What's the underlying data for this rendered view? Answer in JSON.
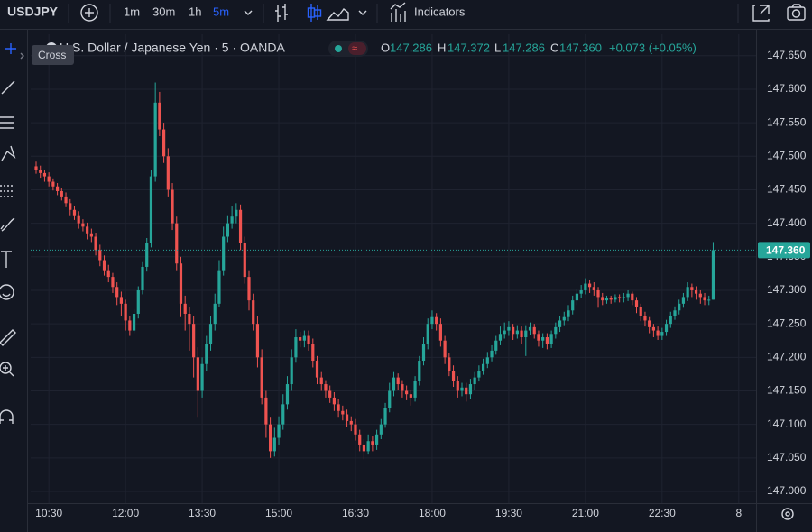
{
  "toolbar": {
    "symbol": "USDJPY",
    "intervals": [
      "1m",
      "30m",
      "1h",
      "5m"
    ],
    "indicators": "Indicators",
    "tooltip": "Cross"
  },
  "chart_data": {
    "type": "candlestick",
    "title": "U.S. Dollar / Japanese Yen · 5 · OANDA",
    "ohlc_legend": {
      "open_label": "O",
      "open": "147.286",
      "high_label": "H",
      "high": "147.372",
      "low_label": "L",
      "low": "147.286",
      "close_label": "C",
      "close": "147.360",
      "change": "+0.073 (+0.05%)"
    },
    "up_color": "#26a69a",
    "down_color": "#ef5350",
    "grid": true,
    "open": [
      147.485,
      147.48,
      147.475,
      147.47,
      147.462,
      147.455,
      147.448,
      147.44,
      147.43,
      147.42,
      147.412,
      147.4,
      147.395,
      147.385,
      147.38,
      147.36,
      147.345,
      147.33,
      147.32,
      147.305,
      147.29,
      147.28,
      147.255,
      147.24,
      147.265,
      147.3,
      147.335,
      147.37,
      147.47,
      147.58,
      147.54,
      147.5,
      147.45,
      147.4,
      147.34,
      147.28,
      147.265,
      147.25,
      147.2,
      147.15,
      147.19,
      147.22,
      147.25,
      147.28,
      147.33,
      147.38,
      147.4,
      147.41,
      147.42,
      147.37,
      147.32,
      147.285,
      147.25,
      147.2,
      147.14,
      147.1,
      147.06,
      147.08,
      147.1,
      147.13,
      147.16,
      147.2,
      147.23,
      147.225,
      147.232,
      147.22,
      147.195,
      147.17,
      147.16,
      147.15,
      147.14,
      147.13,
      147.12,
      147.115,
      147.105,
      147.1,
      147.085,
      147.07,
      147.06,
      147.075,
      147.07,
      147.085,
      147.1,
      147.125,
      147.15,
      147.17,
      147.16,
      147.15,
      147.145,
      147.14,
      147.165,
      147.195,
      147.22,
      147.25,
      147.26,
      147.25,
      147.225,
      147.2,
      147.18,
      147.165,
      147.15,
      147.155,
      147.145,
      147.16,
      147.17,
      147.18,
      147.19,
      147.2,
      147.21,
      147.225,
      147.235,
      147.24,
      147.245,
      147.235,
      147.24,
      147.23,
      147.24,
      147.245,
      147.235,
      147.225,
      147.23,
      147.22,
      147.235,
      147.245,
      147.255,
      147.26,
      147.27,
      147.285,
      147.295,
      147.3,
      147.31,
      147.305,
      147.3,
      147.29,
      147.285,
      147.288,
      147.286,
      147.29,
      147.288,
      147.29,
      147.295,
      147.285,
      147.275,
      147.262,
      147.255,
      147.245,
      147.24,
      147.232,
      147.238,
      147.25,
      147.262,
      147.27,
      147.28,
      147.29,
      147.305,
      147.3,
      147.295,
      147.29,
      147.285,
      147.286
    ],
    "high": [
      147.492,
      147.486,
      147.48,
      147.476,
      147.467,
      147.46,
      147.453,
      147.446,
      147.436,
      147.426,
      147.418,
      147.406,
      147.401,
      147.392,
      147.386,
      147.368,
      147.352,
      147.338,
      147.326,
      147.312,
      147.298,
      147.286,
      147.262,
      147.272,
      147.306,
      147.342,
      147.378,
      147.48,
      147.61,
      147.596,
      147.55,
      147.512,
      147.46,
      147.41,
      147.35,
      147.292,
      147.275,
      147.262,
      147.215,
      147.2,
      147.232,
      147.262,
      147.295,
      147.345,
      147.395,
      147.412,
      147.425,
      147.43,
      147.428,
      147.38,
      147.33,
      147.295,
      147.262,
      147.212,
      147.15,
      147.11,
      147.095,
      147.112,
      147.145,
      147.172,
      147.212,
      147.242,
      147.238,
      147.24,
      147.24,
      147.228,
      147.202,
      147.178,
      147.166,
      147.158,
      147.148,
      147.138,
      147.128,
      147.122,
      147.112,
      147.108,
      147.092,
      147.078,
      147.085,
      147.082,
      147.092,
      147.108,
      147.132,
      147.162,
      147.178,
      147.176,
      147.166,
      147.158,
      147.152,
      147.172,
      147.202,
      147.23,
      147.258,
      147.27,
      147.266,
      147.258,
      147.232,
      147.206,
      147.188,
      147.172,
      147.162,
      147.162,
      147.168,
      147.178,
      147.188,
      147.198,
      147.208,
      147.218,
      147.232,
      147.246,
      147.252,
      147.254,
      147.25,
      147.248,
      147.246,
      147.248,
      147.252,
      147.25,
      147.24,
      147.236,
      147.236,
      147.24,
      147.252,
      147.262,
      147.268,
      147.278,
      147.292,
      147.302,
      147.308,
      147.318,
      147.316,
      147.312,
      147.305,
      147.296,
      147.292,
      147.292,
      147.294,
      147.294,
      147.296,
      147.3,
      147.298,
      147.29,
      147.28,
      147.268,
      147.26,
      147.25,
      147.246,
      147.244,
      147.256,
      147.268,
      147.276,
      147.286,
      147.296,
      147.312,
      147.31,
      147.306,
      147.3,
      147.296,
      147.292,
      147.372
    ],
    "low": [
      147.474,
      147.468,
      147.462,
      147.455,
      147.449,
      147.442,
      147.434,
      147.424,
      147.412,
      147.405,
      147.392,
      147.388,
      147.376,
      147.372,
      147.352,
      147.336,
      147.322,
      147.312,
      147.296,
      147.278,
      147.262,
      147.24,
      147.232,
      147.236,
      147.258,
      147.294,
      147.328,
      147.364,
      147.462,
      147.53,
      147.49,
      147.44,
      147.39,
      147.33,
      147.26,
      147.24,
      147.21,
      147.17,
      147.11,
      147.14,
      147.18,
      147.21,
      147.24,
      147.275,
      147.322,
      147.372,
      147.392,
      147.4,
      147.36,
      147.31,
      147.27,
      147.24,
      147.185,
      147.13,
      147.08,
      147.05,
      147.052,
      147.07,
      147.092,
      147.122,
      147.15,
      147.192,
      147.215,
      147.215,
      147.21,
      147.185,
      147.16,
      147.15,
      147.14,
      147.132,
      147.12,
      147.11,
      147.106,
      147.096,
      147.09,
      147.076,
      147.06,
      147.048,
      147.055,
      147.06,
      147.062,
      147.078,
      147.095,
      147.118,
      147.142,
      147.152,
      147.14,
      147.136,
      147.128,
      147.134,
      147.158,
      147.188,
      147.212,
      147.242,
      147.24,
      147.216,
      147.19,
      147.172,
      147.156,
      147.14,
      147.142,
      147.134,
      147.138,
      147.152,
      147.164,
      147.174,
      147.184,
      147.194,
      147.204,
      147.218,
      147.228,
      147.232,
      147.226,
      147.228,
      147.22,
      147.202,
      147.234,
      147.228,
      147.216,
      147.214,
      147.212,
      147.214,
      147.228,
      147.238,
      147.248,
      147.254,
      147.264,
      147.278,
      147.288,
      147.294,
      147.296,
      147.292,
      147.274,
      147.278,
      147.28,
      147.28,
      147.282,
      147.282,
      147.282,
      147.284,
      147.278,
      147.266,
      147.254,
      147.246,
      147.236,
      147.23,
      147.226,
      147.226,
      147.232,
      147.244,
      147.256,
      147.264,
      147.274,
      147.284,
      147.29,
      147.286,
      147.28,
      147.278,
      147.278,
      147.286
    ],
    "close": [
      147.48,
      147.475,
      147.47,
      147.462,
      147.455,
      147.448,
      147.44,
      147.43,
      147.42,
      147.412,
      147.4,
      147.395,
      147.385,
      147.38,
      147.36,
      147.345,
      147.33,
      147.32,
      147.305,
      147.29,
      147.28,
      147.255,
      147.24,
      147.265,
      147.3,
      147.335,
      147.37,
      147.47,
      147.58,
      147.54,
      147.5,
      147.45,
      147.4,
      147.34,
      147.28,
      147.265,
      147.25,
      147.2,
      147.15,
      147.19,
      147.22,
      147.25,
      147.28,
      147.33,
      147.38,
      147.4,
      147.41,
      147.42,
      147.37,
      147.32,
      147.285,
      147.25,
      147.2,
      147.14,
      147.1,
      147.06,
      147.08,
      147.1,
      147.13,
      147.16,
      147.2,
      147.23,
      147.225,
      147.232,
      147.22,
      147.195,
      147.17,
      147.16,
      147.15,
      147.14,
      147.13,
      147.12,
      147.115,
      147.105,
      147.1,
      147.085,
      147.07,
      147.06,
      147.075,
      147.07,
      147.085,
      147.1,
      147.125,
      147.15,
      147.17,
      147.16,
      147.15,
      147.145,
      147.14,
      147.165,
      147.195,
      147.22,
      147.25,
      147.26,
      147.25,
      147.225,
      147.2,
      147.18,
      147.165,
      147.15,
      147.155,
      147.145,
      147.16,
      147.17,
      147.18,
      147.19,
      147.2,
      147.21,
      147.225,
      147.235,
      147.24,
      147.245,
      147.235,
      147.24,
      147.23,
      147.24,
      147.245,
      147.235,
      147.225,
      147.23,
      147.22,
      147.235,
      147.245,
      147.255,
      147.26,
      147.27,
      147.285,
      147.295,
      147.3,
      147.31,
      147.305,
      147.3,
      147.29,
      147.285,
      147.288,
      147.286,
      147.29,
      147.288,
      147.29,
      147.295,
      147.285,
      147.275,
      147.262,
      147.255,
      147.245,
      147.24,
      147.232,
      147.238,
      147.25,
      147.262,
      147.27,
      147.28,
      147.29,
      147.305,
      147.3,
      147.295,
      147.29,
      147.285,
      147.286,
      147.36
    ],
    "xlim": [
      -1.271,
      169.07
    ],
    "xticks": [
      {
        "value": 3,
        "label": "10:30"
      },
      {
        "value": 21,
        "label": "12:00"
      },
      {
        "value": 39,
        "label": "13:30"
      },
      {
        "value": 57,
        "label": "15:00"
      },
      {
        "value": 75,
        "label": "16:30"
      },
      {
        "value": 93,
        "label": "18:00"
      },
      {
        "value": 111,
        "label": "19:30"
      },
      {
        "value": 129,
        "label": "21:00"
      },
      {
        "value": 147,
        "label": "22:30"
      },
      {
        "value": 165,
        "label": "8"
      }
    ],
    "ylim": [
      146.9825,
      147.682
    ],
    "yticks": [
      {
        "value": 147.0,
        "label": "147.000"
      },
      {
        "value": 147.05,
        "label": "147.050"
      },
      {
        "value": 147.1,
        "label": "147.100"
      },
      {
        "value": 147.15,
        "label": "147.150"
      },
      {
        "value": 147.2,
        "label": "147.200"
      },
      {
        "value": 147.25,
        "label": "147.250"
      },
      {
        "value": 147.3,
        "label": "147.300"
      },
      {
        "value": 147.35,
        "label": "147.350"
      },
      {
        "value": 147.4,
        "label": "147.400"
      },
      {
        "value": 147.45,
        "label": "147.450"
      },
      {
        "value": 147.5,
        "label": "147.500"
      },
      {
        "value": 147.55,
        "label": "147.550"
      },
      {
        "value": 147.6,
        "label": "147.600"
      },
      {
        "value": 147.65,
        "label": "147.650"
      }
    ]
  }
}
